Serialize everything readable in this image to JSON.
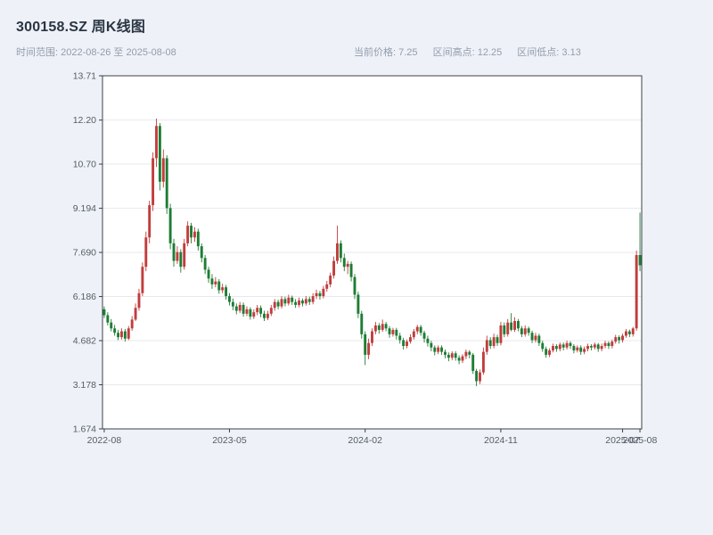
{
  "header": {
    "title": "300158.SZ 周K线图",
    "date_range_label": "时间范围: 2022-08-26 至 2025-08-08",
    "stats": [
      {
        "text": "当前价格: 7.25"
      },
      {
        "text": "区间高点: 12.25"
      },
      {
        "text": "区间低点: 3.13"
      }
    ]
  },
  "chart_data": {
    "type": "candlestick",
    "symbol": "300158.SZ",
    "period": "weekly",
    "title": "300158.SZ 周K线图",
    "date_range": {
      "start": "2022-08-26",
      "end": "2025-08-08"
    },
    "current_price": 7.25,
    "range_high": 12.25,
    "range_low": 3.13,
    "grid": true,
    "legend": "none",
    "ylim": [
      1.674,
      13.71
    ],
    "y_ticks": [
      {
        "label": "1.674",
        "value": 1.674
      },
      {
        "label": "3.178",
        "value": 3.178
      },
      {
        "label": "4.682",
        "value": 4.682
      },
      {
        "label": "6.186",
        "value": 6.186
      },
      {
        "label": "7.690",
        "value": 7.69
      },
      {
        "label": "9.194",
        "value": 9.194
      },
      {
        "label": "10.70",
        "value": 10.7
      },
      {
        "label": "12.20",
        "value": 12.2
      },
      {
        "label": "13.71",
        "value": 13.71
      }
    ],
    "x_ticks": [
      {
        "label": "2022-08",
        "index": 0
      },
      {
        "label": "2023-05",
        "index": 36
      },
      {
        "label": "2024-02",
        "index": 75
      },
      {
        "label": "2024-11",
        "index": 114
      },
      {
        "label": "2025-07",
        "index": 149
      },
      {
        "label": "2025-08",
        "index": 154
      }
    ],
    "colors": {
      "up": "#c23c3c",
      "down": "#1e7d34",
      "grid": "#e7e9ed",
      "axis": "#3b4048",
      "tick_text": "#555c66",
      "background": "#ffffff"
    },
    "candles_ohlc": [
      [
        5.75,
        5.85,
        5.45,
        5.55
      ],
      [
        5.55,
        5.65,
        5.2,
        5.3
      ],
      [
        5.3,
        5.42,
        5.0,
        5.1
      ],
      [
        5.1,
        5.22,
        4.85,
        4.95
      ],
      [
        4.95,
        5.05,
        4.7,
        4.8
      ],
      [
        4.8,
        5.1,
        4.72,
        5.0
      ],
      [
        5.0,
        5.08,
        4.65,
        4.75
      ],
      [
        4.75,
        5.18,
        4.7,
        5.1
      ],
      [
        5.1,
        5.52,
        5.02,
        5.4
      ],
      [
        5.4,
        5.95,
        5.35,
        5.8
      ],
      [
        5.8,
        6.45,
        5.7,
        6.3
      ],
      [
        6.3,
        7.35,
        6.2,
        7.2
      ],
      [
        7.2,
        8.4,
        7.05,
        8.2
      ],
      [
        8.2,
        9.45,
        8.0,
        9.3
      ],
      [
        9.3,
        11.1,
        9.1,
        10.9
      ],
      [
        10.9,
        12.25,
        10.6,
        12.0
      ],
      [
        12.0,
        12.1,
        9.8,
        10.1
      ],
      [
        10.1,
        11.2,
        9.9,
        10.9
      ],
      [
        10.9,
        11.0,
        9.0,
        9.2
      ],
      [
        9.2,
        9.35,
        7.8,
        8.0
      ],
      [
        8.0,
        8.15,
        7.2,
        7.4
      ],
      [
        7.4,
        7.9,
        7.3,
        7.7
      ],
      [
        7.7,
        7.8,
        7.0,
        7.2
      ],
      [
        7.2,
        8.15,
        7.1,
        8.0
      ],
      [
        8.0,
        8.75,
        7.9,
        8.6
      ],
      [
        8.6,
        8.7,
        8.0,
        8.2
      ],
      [
        8.2,
        8.55,
        8.05,
        8.4
      ],
      [
        8.4,
        8.5,
        7.75,
        7.9
      ],
      [
        7.9,
        8.0,
        7.35,
        7.5
      ],
      [
        7.5,
        7.6,
        6.95,
        7.1
      ],
      [
        7.1,
        7.2,
        6.65,
        6.8
      ],
      [
        6.8,
        6.95,
        6.45,
        6.6
      ],
      [
        6.6,
        6.85,
        6.5,
        6.7
      ],
      [
        6.7,
        6.78,
        6.28,
        6.4
      ],
      [
        6.4,
        6.62,
        6.3,
        6.5
      ],
      [
        6.5,
        6.58,
        6.08,
        6.2
      ],
      [
        6.2,
        6.3,
        5.88,
        6.0
      ],
      [
        6.0,
        6.12,
        5.72,
        5.85
      ],
      [
        5.85,
        5.95,
        5.58,
        5.7
      ],
      [
        5.7,
        6.0,
        5.62,
        5.9
      ],
      [
        5.9,
        5.98,
        5.5,
        5.6
      ],
      [
        5.6,
        5.85,
        5.52,
        5.75
      ],
      [
        5.75,
        5.82,
        5.4,
        5.5
      ],
      [
        5.5,
        5.75,
        5.42,
        5.65
      ],
      [
        5.65,
        5.9,
        5.55,
        5.8
      ],
      [
        5.8,
        5.88,
        5.48,
        5.6
      ],
      [
        5.6,
        5.7,
        5.35,
        5.45
      ],
      [
        5.45,
        5.7,
        5.38,
        5.6
      ],
      [
        5.6,
        5.9,
        5.52,
        5.8
      ],
      [
        5.8,
        6.1,
        5.7,
        6.0
      ],
      [
        6.0,
        6.08,
        5.75,
        5.85
      ],
      [
        5.85,
        6.2,
        5.78,
        6.1
      ],
      [
        6.1,
        6.18,
        5.85,
        5.95
      ],
      [
        5.95,
        6.25,
        5.88,
        6.15
      ],
      [
        6.15,
        6.22,
        5.9,
        6.0
      ],
      [
        6.0,
        6.1,
        5.8,
        5.9
      ],
      [
        5.9,
        6.15,
        5.82,
        6.05
      ],
      [
        6.05,
        6.12,
        5.85,
        5.95
      ],
      [
        5.95,
        6.2,
        5.88,
        6.1
      ],
      [
        6.1,
        6.18,
        5.9,
        6.0
      ],
      [
        6.0,
        6.3,
        5.92,
        6.2
      ],
      [
        6.2,
        6.42,
        6.1,
        6.3
      ],
      [
        6.3,
        6.38,
        6.08,
        6.2
      ],
      [
        6.2,
        6.55,
        6.12,
        6.45
      ],
      [
        6.45,
        6.72,
        6.35,
        6.6
      ],
      [
        6.6,
        7.0,
        6.5,
        6.9
      ],
      [
        6.9,
        7.55,
        6.8,
        7.4
      ],
      [
        7.4,
        8.6,
        7.3,
        8.0
      ],
      [
        8.0,
        8.1,
        7.35,
        7.5
      ],
      [
        7.5,
        7.65,
        7.05,
        7.2
      ],
      [
        7.2,
        7.4,
        6.95,
        7.3
      ],
      [
        7.3,
        7.38,
        6.7,
        6.85
      ],
      [
        6.85,
        6.95,
        6.1,
        6.25
      ],
      [
        6.25,
        6.35,
        5.45,
        5.6
      ],
      [
        5.6,
        5.7,
        4.75,
        4.9
      ],
      [
        4.9,
        5.0,
        3.85,
        4.2
      ],
      [
        4.2,
        4.75,
        4.05,
        4.6
      ],
      [
        4.6,
        5.1,
        4.5,
        5.0
      ],
      [
        5.0,
        5.32,
        4.9,
        5.2
      ],
      [
        5.2,
        5.28,
        4.92,
        5.05
      ],
      [
        5.05,
        5.4,
        4.98,
        5.25
      ],
      [
        5.25,
        5.32,
        5.0,
        5.1
      ],
      [
        5.1,
        5.18,
        4.78,
        4.9
      ],
      [
        4.9,
        5.12,
        4.82,
        5.05
      ],
      [
        5.05,
        5.12,
        4.72,
        4.85
      ],
      [
        4.85,
        4.95,
        4.58,
        4.7
      ],
      [
        4.7,
        4.78,
        4.38,
        4.5
      ],
      [
        4.5,
        4.72,
        4.42,
        4.65
      ],
      [
        4.65,
        4.9,
        4.58,
        4.8
      ],
      [
        4.8,
        5.08,
        4.72,
        5.0
      ],
      [
        5.0,
        5.22,
        4.9,
        5.15
      ],
      [
        5.15,
        5.22,
        4.85,
        4.95
      ],
      [
        4.95,
        5.02,
        4.62,
        4.75
      ],
      [
        4.75,
        4.85,
        4.48,
        4.6
      ],
      [
        4.6,
        4.68,
        4.32,
        4.45
      ],
      [
        4.45,
        4.52,
        4.18,
        4.3
      ],
      [
        4.3,
        4.52,
        4.22,
        4.45
      ],
      [
        4.45,
        4.52,
        4.2,
        4.3
      ],
      [
        4.3,
        4.38,
        4.08,
        4.2
      ],
      [
        4.2,
        4.28,
        3.98,
        4.1
      ],
      [
        4.1,
        4.32,
        4.02,
        4.25
      ],
      [
        4.25,
        4.32,
        4.0,
        4.1
      ],
      [
        4.1,
        4.18,
        3.88,
        4.0
      ],
      [
        4.0,
        4.22,
        3.92,
        4.15
      ],
      [
        4.15,
        4.38,
        4.05,
        4.3
      ],
      [
        4.3,
        4.36,
        4.08,
        4.2
      ],
      [
        4.2,
        4.26,
        3.55,
        3.65
      ],
      [
        3.65,
        3.72,
        3.13,
        3.3
      ],
      [
        3.3,
        3.7,
        3.2,
        3.6
      ],
      [
        3.6,
        4.45,
        3.52,
        4.3
      ],
      [
        4.3,
        4.85,
        4.2,
        4.7
      ],
      [
        4.7,
        4.8,
        4.4,
        4.5
      ],
      [
        4.5,
        4.92,
        4.42,
        4.8
      ],
      [
        4.8,
        4.88,
        4.5,
        4.6
      ],
      [
        4.6,
        5.32,
        4.52,
        5.2
      ],
      [
        5.2,
        5.3,
        4.8,
        4.9
      ],
      [
        4.9,
        5.42,
        4.82,
        5.3
      ],
      [
        5.3,
        5.62,
        5.0,
        5.05
      ],
      [
        5.05,
        5.48,
        4.98,
        5.35
      ],
      [
        5.35,
        5.42,
        5.0,
        5.1
      ],
      [
        5.1,
        5.18,
        4.8,
        4.9
      ],
      [
        4.9,
        5.2,
        4.82,
        5.1
      ],
      [
        5.1,
        5.16,
        4.85,
        4.95
      ],
      [
        4.95,
        5.02,
        4.6,
        4.7
      ],
      [
        4.7,
        4.95,
        4.62,
        4.85
      ],
      [
        4.85,
        4.92,
        4.5,
        4.6
      ],
      [
        4.6,
        4.68,
        4.3,
        4.4
      ],
      [
        4.4,
        4.48,
        4.1,
        4.2
      ],
      [
        4.2,
        4.42,
        4.12,
        4.35
      ],
      [
        4.35,
        4.58,
        4.28,
        4.5
      ],
      [
        4.5,
        4.56,
        4.3,
        4.4
      ],
      [
        4.4,
        4.62,
        4.32,
        4.55
      ],
      [
        4.55,
        4.62,
        4.35,
        4.45
      ],
      [
        4.45,
        4.68,
        4.38,
        4.6
      ],
      [
        4.6,
        4.66,
        4.4,
        4.5
      ],
      [
        4.5,
        4.56,
        4.25,
        4.35
      ],
      [
        4.35,
        4.52,
        4.28,
        4.45
      ],
      [
        4.45,
        4.52,
        4.2,
        4.3
      ],
      [
        4.3,
        4.48,
        4.22,
        4.4
      ],
      [
        4.4,
        4.58,
        4.32,
        4.5
      ],
      [
        4.5,
        4.56,
        4.35,
        4.45
      ],
      [
        4.45,
        4.62,
        4.38,
        4.55
      ],
      [
        4.55,
        4.6,
        4.3,
        4.4
      ],
      [
        4.4,
        4.58,
        4.32,
        4.5
      ],
      [
        4.5,
        4.68,
        4.42,
        4.6
      ],
      [
        4.6,
        4.66,
        4.4,
        4.5
      ],
      [
        4.5,
        4.72,
        4.42,
        4.65
      ],
      [
        4.65,
        4.88,
        4.58,
        4.8
      ],
      [
        4.8,
        4.86,
        4.58,
        4.7
      ],
      [
        4.7,
        4.92,
        4.62,
        4.85
      ],
      [
        4.85,
        5.08,
        4.78,
        5.0
      ],
      [
        5.0,
        5.06,
        4.8,
        4.9
      ],
      [
        4.9,
        5.15,
        4.82,
        5.1
      ],
      [
        5.1,
        7.75,
        5.02,
        7.6
      ],
      [
        7.6,
        9.05,
        7.05,
        7.25
      ]
    ]
  }
}
